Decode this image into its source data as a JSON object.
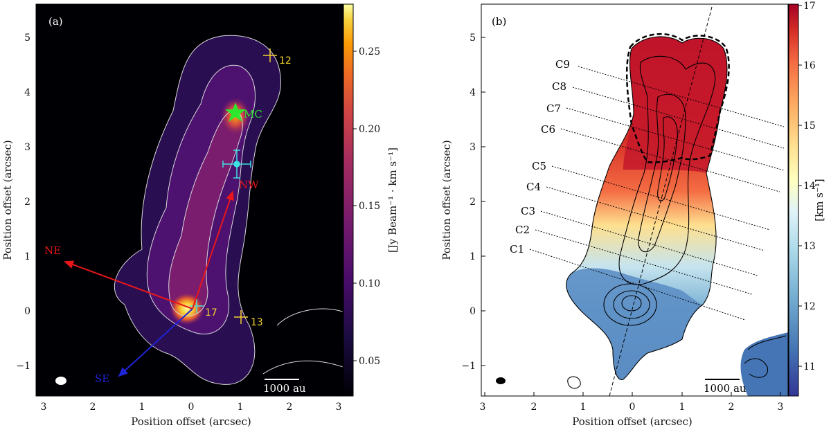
{
  "figure": {
    "panel_a": {
      "label": "(a)",
      "xlabel": "Position offset (arcsec)",
      "ylabel": "Position offset (arcsec)",
      "xticks": [
        "3",
        "2",
        "1",
        "0",
        "1",
        "2",
        "3"
      ],
      "yticks": [
        "5",
        "4",
        "3",
        "2",
        "1",
        "0",
        "−1"
      ],
      "colorbar_label": "[Jy Beam⁻¹ · km s⁻¹]",
      "colorbar_ticks": [
        "0.25",
        "0.20",
        "0.15",
        "0.10",
        "0.05"
      ],
      "scalebar": "1000 au",
      "markers": [
        {
          "label": "12",
          "x": -1.6,
          "y": 4.65
        },
        {
          "label": "17",
          "x": -0.08,
          "y": 0.05
        },
        {
          "label": "13",
          "x": -1.0,
          "y": -0.15
        }
      ],
      "star_label": "MC",
      "arrows": [
        {
          "label": "NW",
          "color": "#e8161b"
        },
        {
          "label": "NE",
          "color": "#e8161b"
        },
        {
          "label": "SE",
          "color": "#1f24d6"
        }
      ]
    },
    "panel_b": {
      "label": "(b)",
      "xlabel": "Position offset (arcsec)",
      "ylabel": "Position offset (arcsec)",
      "xticks": [
        "3",
        "2",
        "1",
        "0",
        "1",
        "2",
        "3"
      ],
      "yticks": [
        "5",
        "4",
        "3",
        "2",
        "1",
        "0",
        "−1"
      ],
      "colorbar_label": "[km s⁻¹]",
      "colorbar_ticks": [
        "17",
        "16",
        "15",
        "14",
        "13",
        "12",
        "11"
      ],
      "scalebar": "1000 au",
      "cuts": [
        "C9",
        "C8",
        "C7",
        "C6",
        "C5",
        "C4",
        "C3",
        "C2",
        "C1"
      ]
    }
  },
  "chart_data": [
    {
      "type": "heatmap",
      "title": "(a)",
      "xlabel": "Position offset (arcsec)",
      "ylabel": "Position offset (arcsec)",
      "xlim": [
        3.1,
        -3.1
      ],
      "ylim": [
        -1.55,
        5.55
      ],
      "colorbar": {
        "label": "[Jy Beam⁻¹ · km s⁻¹]",
        "range": [
          0.03,
          0.28
        ],
        "colormap": "inferno"
      },
      "annotations": [
        "MC",
        "NW",
        "NE",
        "SE",
        "12",
        "13",
        "17"
      ]
    },
    {
      "type": "heatmap",
      "title": "(b)",
      "xlabel": "Position offset (arcsec)",
      "ylabel": "Position offset (arcsec)",
      "xlim": [
        3.1,
        -3.1
      ],
      "ylim": [
        -1.55,
        5.55
      ],
      "colorbar": {
        "label": "[km s⁻¹]",
        "range": [
          10.5,
          17
        ],
        "colormap": "RdYlBu_r"
      },
      "annotations": [
        "C1",
        "C2",
        "C3",
        "C4",
        "C5",
        "C6",
        "C7",
        "C8",
        "C9"
      ]
    }
  ]
}
